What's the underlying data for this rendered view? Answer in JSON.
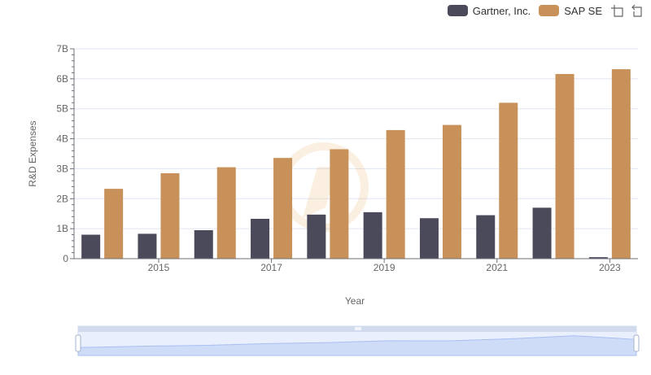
{
  "legend": {
    "series_0": "Gartner, Inc.",
    "series_1": "SAP SE"
  },
  "toolbar": {
    "icons": [
      "zoom-icon",
      "restore-icon"
    ]
  },
  "colors": {
    "series_0": "#4a4a5a",
    "series_1": "#c8915a",
    "grid": "#e0e6f1",
    "slider_fill": "#d7e2fb",
    "slider_line": "#a9bff2"
  },
  "chart_data": {
    "type": "bar",
    "xlabel": "Year",
    "ylabel": "R&D Expenses",
    "categories": [
      "2014",
      "2015",
      "2016",
      "2017",
      "2018",
      "2019",
      "2020",
      "2021",
      "2022",
      "2023"
    ],
    "x_tick_labels": [
      "2015",
      "2017",
      "2019",
      "2021",
      "2023"
    ],
    "y_tick_labels": [
      "0",
      "1B",
      "2B",
      "3B",
      "4B",
      "5B",
      "6B",
      "7B"
    ],
    "ylim": [
      0,
      7000000000
    ],
    "grid": true,
    "legend_position": "top-right",
    "series": [
      {
        "name": "Gartner, Inc.",
        "values": [
          800000000,
          830000000,
          950000000,
          1330000000,
          1470000000,
          1550000000,
          1350000000,
          1450000000,
          1700000000,
          50000000
        ]
      },
      {
        "name": "SAP SE",
        "values": [
          2330000000,
          2850000000,
          3050000000,
          3360000000,
          3650000000,
          4290000000,
          4460000000,
          5200000000,
          6160000000,
          6320000000
        ]
      }
    ]
  }
}
